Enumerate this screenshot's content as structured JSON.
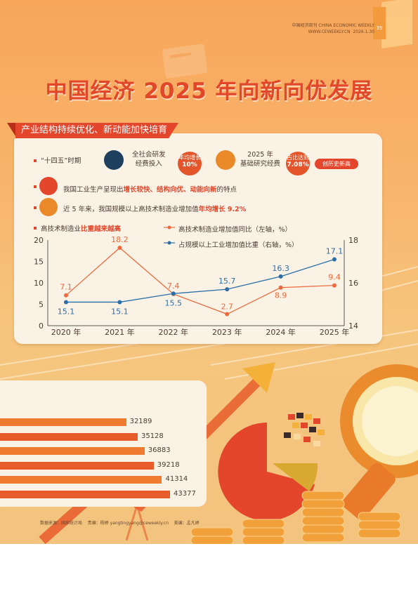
{
  "header": {
    "brand_cn": "中国经济周刊",
    "brand_en": "CHINA ECONOMIC WEEKLY",
    "url": "WWW.CEWEEKLY.CN",
    "date": "2026.1.30",
    "page_number": "39"
  },
  "title": "中国经济 2025 年向新向优发展",
  "section_title": "产业结构持续优化、新动能加快培育",
  "row1": {
    "period": "“十四五”时期",
    "item1_label_1": "全社会研发",
    "item1_label_2": "经费投入",
    "item1_bubble_1": "年均增长",
    "item1_bubble_2": "10%",
    "item2_label_1": "2025 年",
    "item2_label_2": "基础研究经费",
    "item2_bubble_1": "占比达到",
    "item2_bubble_2": "7.08%",
    "item2_badge": "创历史新高"
  },
  "row2": {
    "pre": "我国工业生产呈现出",
    "highlight": "增长较快、结构向优、动能向新",
    "post": "的特点"
  },
  "row3": {
    "pre": "近 5 年来，我国规模以上高技术制造业增加值",
    "highlight": "年均增长 9.2%"
  },
  "chart_header": {
    "pre": "高技术制造业",
    "highlight": "比重越来越高"
  },
  "chart_data": {
    "type": "line",
    "categories": [
      "2020 年",
      "2021 年",
      "2022 年",
      "2023 年",
      "2024 年",
      "2025 年"
    ],
    "series": [
      {
        "name": "高技术制造业增加值同比（左轴，%）",
        "axis": "left",
        "color": "#ec6a3c",
        "values": [
          7.1,
          18.2,
          7.4,
          2.7,
          8.9,
          9.4
        ]
      },
      {
        "name": "占规模以上工业增加值比重（右轴，%）",
        "axis": "right",
        "color": "#2b6fa8",
        "values": [
          15.1,
          15.1,
          15.5,
          15.7,
          16.3,
          17.1
        ]
      }
    ],
    "y_left": {
      "min": 0,
      "max": 20,
      "ticks": [
        0,
        5,
        10,
        15,
        20
      ]
    },
    "y_right": {
      "min": 14,
      "max": 18,
      "ticks": [
        14,
        16,
        18
      ]
    },
    "grid": false,
    "legend": "top-right"
  },
  "bar_data": {
    "values": [
      32189,
      35128,
      36883,
      39218,
      41314,
      43377
    ]
  },
  "footer": {
    "source": "数据来源：国家统计局",
    "editor": "责编：杨婷 yangtingyang@ceweekly.cn",
    "designer": "美编：孟凡婷"
  },
  "colors": {
    "accent": "#e2472a",
    "orange": "#ec6a3c",
    "blue": "#2b6fa8"
  }
}
